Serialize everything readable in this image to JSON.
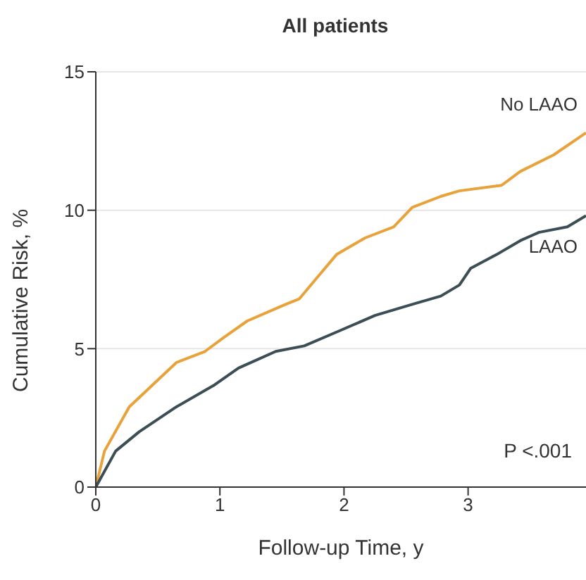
{
  "chart_data": {
    "type": "line",
    "title": "All patients",
    "xlabel": "Follow-up Time, y",
    "ylabel": "Cumulative Risk, %",
    "xlim": [
      0,
      3.95
    ],
    "xticks": [
      0,
      1,
      2,
      3
    ],
    "ylim": [
      0,
      15
    ],
    "yticks": [
      0,
      5,
      10,
      15
    ],
    "grid": "y",
    "annotations": [
      "P <.001"
    ],
    "series": [
      {
        "name": "No LAAO",
        "color": "#e8a23a",
        "x": [
          0,
          0.07,
          0.27,
          0.46,
          0.65,
          0.88,
          1.03,
          1.22,
          1.53,
          1.64,
          1.79,
          1.94,
          2.17,
          2.4,
          2.55,
          2.78,
          2.93,
          3.27,
          3.42,
          3.69,
          3.95
        ],
        "values": [
          0,
          1.3,
          2.9,
          3.7,
          4.5,
          4.9,
          5.4,
          6,
          6.6,
          6.8,
          7.6,
          8.4,
          9,
          9.4,
          10.1,
          10.5,
          10.7,
          10.9,
          11.4,
          12,
          12.8
        ]
      },
      {
        "name": "LAAO",
        "color": "#3b4d55",
        "x": [
          0,
          0.16,
          0.35,
          0.65,
          0.96,
          1.15,
          1.45,
          1.68,
          1.94,
          2.25,
          2.55,
          2.78,
          2.93,
          3.02,
          3.23,
          3.42,
          3.57,
          3.8,
          3.95
        ],
        "values": [
          0,
          1.3,
          2,
          2.9,
          3.7,
          4.3,
          4.9,
          5.1,
          5.6,
          6.2,
          6.6,
          6.9,
          7.3,
          7.9,
          8.4,
          8.9,
          9.2,
          9.4,
          9.8
        ]
      }
    ]
  }
}
